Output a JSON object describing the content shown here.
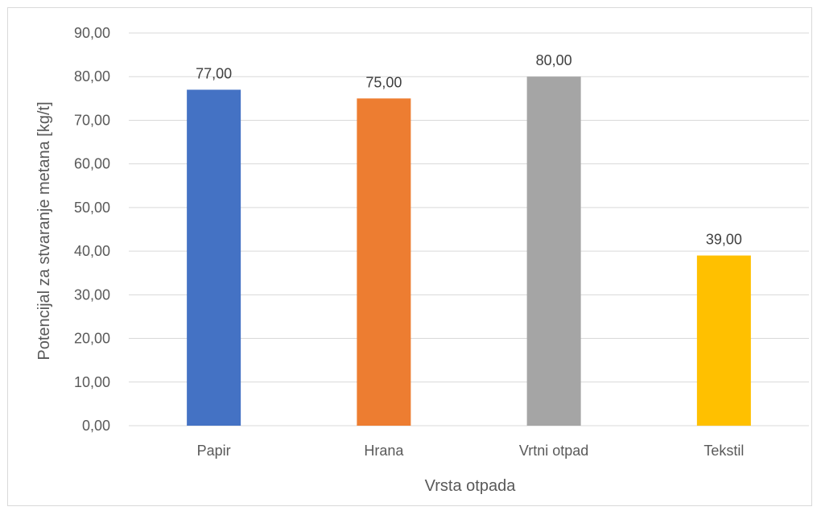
{
  "chart_data": {
    "type": "bar",
    "categories": [
      "Papir",
      "Hrana",
      "Vrtni otpad",
      "Tekstil"
    ],
    "values": [
      77.0,
      75.0,
      80.0,
      39.0
    ],
    "value_labels": [
      "77,00",
      "75,00",
      "80,00",
      "39,00"
    ],
    "colors": [
      "#4472C4",
      "#ED7D31",
      "#A5A5A5",
      "#FFC000"
    ],
    "title": "",
    "xlabel": "Vrsta otpada",
    "ylabel": "Potencijal za stvaranje metana [kg/t]",
    "ylim": [
      0,
      90
    ],
    "yticks": [
      0,
      10,
      20,
      30,
      40,
      50,
      60,
      70,
      80,
      90
    ],
    "ytick_labels": [
      "0,00",
      "10,00",
      "20,00",
      "30,00",
      "40,00",
      "50,00",
      "60,00",
      "70,00",
      "80,00",
      "90,00"
    ],
    "grid": true,
    "gridline_color": "#d9d9d9",
    "legend": "none"
  }
}
